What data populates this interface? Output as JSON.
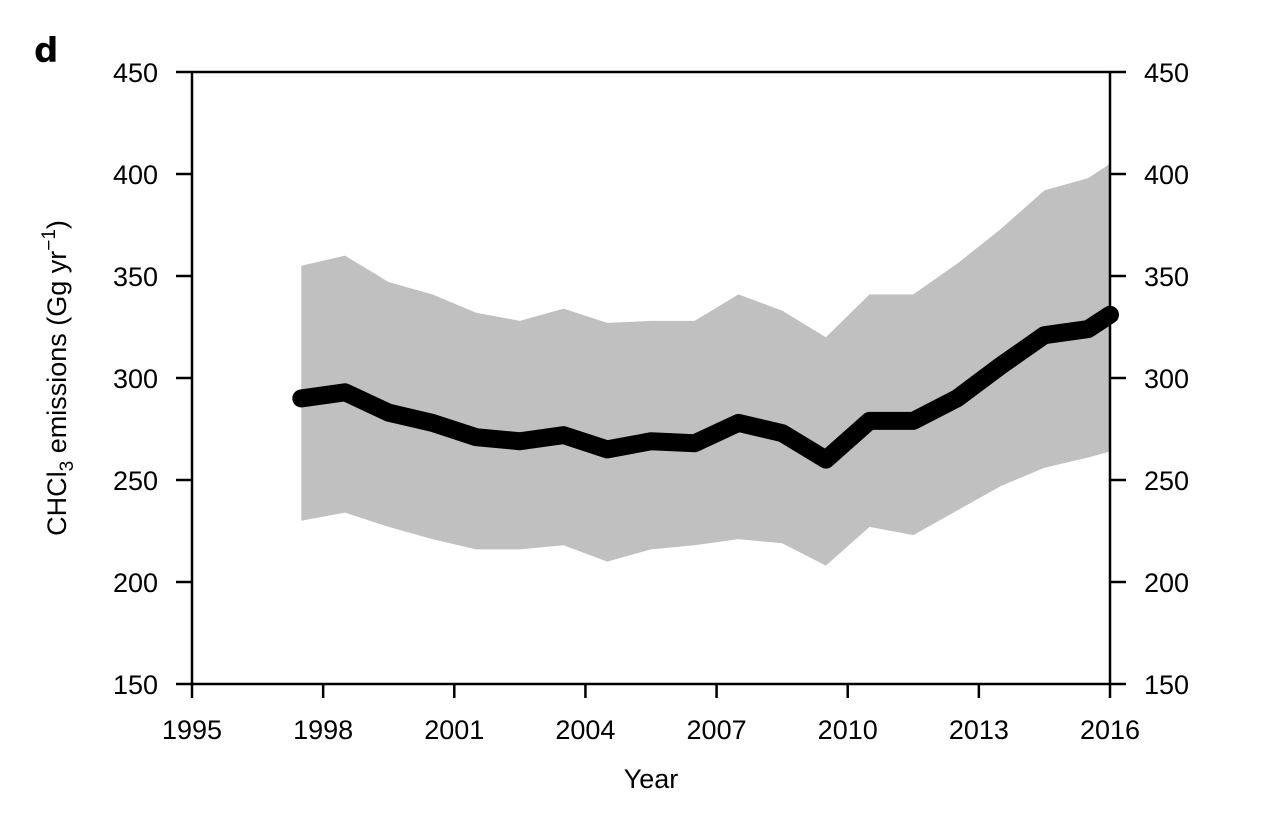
{
  "panel_label": "d",
  "chart_data": {
    "type": "line",
    "title": "",
    "xlabel": "Year",
    "ylabel_parts": {
      "pre": "CHCl",
      "sub": "3",
      "mid": " emissions (Gg yr",
      "sup": "−1",
      "post": ")"
    },
    "xlim": [
      1995,
      2016
    ],
    "ylim": [
      150,
      450
    ],
    "xticks": [
      1995,
      1998,
      2001,
      2004,
      2007,
      2010,
      2013,
      2016
    ],
    "yticks": [
      150,
      200,
      250,
      300,
      350,
      400,
      450
    ],
    "right_axis_ticks": true,
    "grid": false,
    "colors": {
      "line": "#000000",
      "band": "#c0c0c0"
    },
    "x": [
      1997.5,
      1998.5,
      1999.5,
      2000.5,
      2001.5,
      2002.5,
      2003.5,
      2004.5,
      2005.5,
      2006.5,
      2007.5,
      2008.5,
      2009.5,
      2010.5,
      2011.5,
      2012.5,
      2013.5,
      2014.5,
      2015.5,
      2016
    ],
    "series": [
      {
        "role": "mean",
        "values": [
          290,
          293,
          283,
          278,
          271,
          269,
          272,
          265,
          269,
          268,
          278,
          273,
          260,
          279,
          279,
          290,
          306,
          321,
          324,
          331
        ]
      }
    ],
    "band": {
      "upper": [
        355,
        360,
        347,
        341,
        332,
        328,
        334,
        327,
        328,
        328,
        341,
        333,
        320,
        341,
        341,
        356,
        373,
        392,
        398,
        405
      ],
      "lower": [
        230,
        234,
        227,
        221,
        216,
        216,
        218,
        210,
        216,
        218,
        221,
        219,
        208,
        227,
        223,
        235,
        247,
        256,
        261,
        264
      ]
    }
  }
}
